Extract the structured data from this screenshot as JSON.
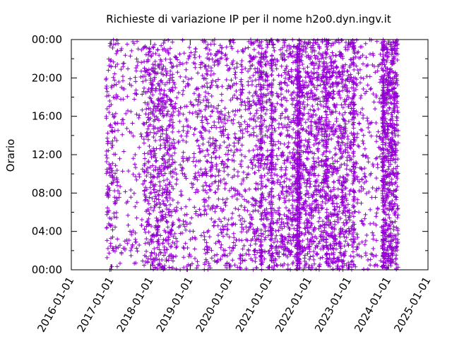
{
  "chart_data": {
    "type": "scatter",
    "title": "Richieste di variazione IP per il nome h2o0.dyn.ingv.it",
    "xlabel": "",
    "ylabel": "Orario",
    "marker": "+",
    "color": "#9400d3",
    "grid": false,
    "legend": "none",
    "xlim": [
      "2016-01-01",
      "2025-01-01"
    ],
    "ylim": [
      "00:00",
      "24:00"
    ],
    "x_ticks": [
      "2016-01-01",
      "2017-01-01",
      "2018-01-01",
      "2019-01-01",
      "2020-01-01",
      "2021-01-01",
      "2022-01-01",
      "2023-01-01",
      "2024-01-01",
      "2025-01-01"
    ],
    "y_ticks": [
      "00:00",
      "04:00",
      "08:00",
      "12:00",
      "16:00",
      "20:00",
      "00:00"
    ],
    "density_bands": [
      {
        "from": "2016-11-15",
        "to": "2017-03-01",
        "points": 160
      },
      {
        "from": "2017-03-01",
        "to": "2017-11-01",
        "points": 140
      },
      {
        "from": "2017-11-01",
        "to": "2018-08-01",
        "points": 620
      },
      {
        "from": "2018-08-01",
        "to": "2019-04-01",
        "points": 220
      },
      {
        "from": "2019-04-01",
        "to": "2019-11-01",
        "points": 300
      },
      {
        "from": "2019-11-01",
        "to": "2020-08-01",
        "points": 330
      },
      {
        "from": "2020-08-01",
        "to": "2021-04-01",
        "points": 420
      },
      {
        "from": "2021-04-01",
        "to": "2021-11-01",
        "points": 440
      },
      {
        "from": "2021-11-01",
        "to": "2022-09-01",
        "points": 780
      },
      {
        "from": "2022-09-01",
        "to": "2023-03-01",
        "points": 420
      },
      {
        "from": "2023-03-01",
        "to": "2023-11-01",
        "points": 200
      },
      {
        "from": "2023-11-01",
        "to": "2024-04-01",
        "points": 620
      }
    ],
    "heavy_columns": [
      {
        "date": "2020-10-15",
        "points": 80
      },
      {
        "date": "2021-01-20",
        "points": 110
      },
      {
        "date": "2021-09-15",
        "points": 170
      },
      {
        "date": "2021-10-05",
        "points": 150
      },
      {
        "date": "2022-06-10",
        "points": 80
      },
      {
        "date": "2023-02-15",
        "points": 70
      },
      {
        "date": "2023-11-15",
        "points": 120
      }
    ],
    "outliers": [
      {
        "x": "2024-04-01",
        "y": "14:00"
      },
      {
        "x": "2024-04-01",
        "y": "14:30"
      },
      {
        "x": "2024-03-20",
        "y": "10:10"
      },
      {
        "x": "2024-02-15",
        "y": "10:00"
      }
    ]
  }
}
